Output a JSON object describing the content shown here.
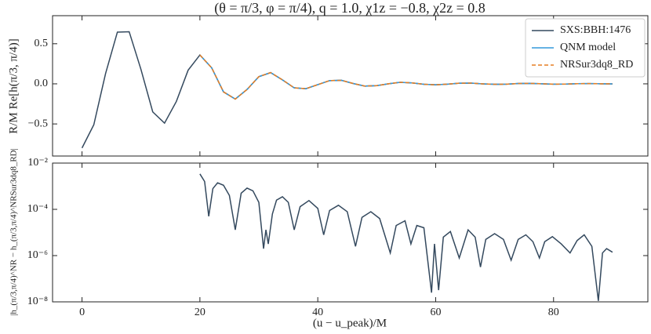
{
  "chart_data": [
    {
      "type": "line",
      "title": "(θ = π/3, φ = π/4), q = 1.0, χ1z = −0.8, χ2z = 0.8",
      "ylabel": "R/M Re[h(π/3, π/4)]",
      "xlim": [
        -5,
        96
      ],
      "ylim": [
        -0.9,
        0.85
      ],
      "xticks": [
        0,
        20,
        40,
        60,
        80
      ],
      "yticks": [
        {
          "value": -0.5,
          "label": "−0.5"
        },
        {
          "value": 0,
          "label": "0.0"
        },
        0.5
      ],
      "legend": "upper right",
      "series": [
        {
          "name": "SXS:BBH:1476",
          "color": "#34495e",
          "style": "solid",
          "x": [
            0,
            2,
            4,
            6,
            8,
            10,
            12,
            14,
            16,
            18,
            20,
            22,
            24,
            26,
            28,
            30,
            32,
            34,
            36,
            38,
            40,
            42,
            44,
            46,
            48,
            50,
            52,
            54,
            56,
            58,
            60,
            62,
            64,
            66,
            68,
            70,
            72,
            74,
            76,
            78,
            80,
            82,
            84,
            86,
            88,
            90
          ],
          "values": [
            -0.8,
            -0.51,
            0.13,
            0.645,
            0.65,
            0.18,
            -0.35,
            -0.49,
            -0.22,
            0.17,
            0.36,
            0.2,
            -0.1,
            -0.19,
            -0.07,
            0.09,
            0.14,
            0.05,
            -0.05,
            -0.06,
            -0.01,
            0.04,
            0.044,
            0.004,
            -0.028,
            -0.023,
            0.001,
            0.019,
            0.012,
            -0.005,
            -0.012,
            -0.004,
            0.008,
            0.009,
            0.0,
            -0.006,
            -0.004,
            0.004,
            0.006,
            0.001,
            -0.004,
            -0.003,
            0.002,
            0.003,
            0.001,
            0.0
          ]
        },
        {
          "name": "QNM model",
          "color": "#3498db",
          "style": "solid",
          "x": [
            20,
            22,
            24,
            26,
            28,
            30,
            32,
            34,
            36,
            38,
            40,
            42,
            44,
            46,
            48,
            50,
            52,
            54,
            56,
            58,
            60,
            62,
            64,
            66,
            68,
            70,
            72,
            74,
            76,
            78,
            80,
            82,
            84,
            86,
            88,
            90
          ],
          "values": [
            0.36,
            0.2,
            -0.1,
            -0.19,
            -0.07,
            0.09,
            0.14,
            0.05,
            -0.05,
            -0.06,
            -0.01,
            0.04,
            0.044,
            0.004,
            -0.028,
            -0.023,
            0.001,
            0.019,
            0.012,
            -0.005,
            -0.012,
            -0.004,
            0.008,
            0.009,
            0.0,
            -0.006,
            -0.004,
            0.004,
            0.006,
            0.001,
            -0.004,
            -0.003,
            0.002,
            0.003,
            0.001,
            0.0
          ]
        },
        {
          "name": "NRSur3dq8_RD",
          "color": "#e67e22",
          "style": "dashed",
          "x": [
            20,
            22,
            24,
            26,
            28,
            30,
            32,
            34,
            36,
            38,
            40,
            42,
            44,
            46,
            48,
            50,
            52,
            54,
            56,
            58,
            60,
            62,
            64,
            66,
            68,
            70,
            72,
            74,
            76,
            78,
            80,
            82,
            84,
            86,
            88,
            90
          ],
          "values": [
            0.36,
            0.2,
            -0.1,
            -0.19,
            -0.07,
            0.09,
            0.14,
            0.05,
            -0.05,
            -0.06,
            -0.01,
            0.04,
            0.044,
            0.004,
            -0.028,
            -0.023,
            0.001,
            0.019,
            0.012,
            -0.005,
            -0.012,
            -0.004,
            0.008,
            0.009,
            0.0,
            -0.006,
            -0.004,
            0.004,
            0.006,
            0.001,
            -0.004,
            -0.003,
            0.002,
            0.003,
            0.001,
            0.0
          ]
        }
      ]
    },
    {
      "type": "line",
      "log_y": true,
      "xlabel": "(u − u_peak)/M",
      "ylabel": "|h_(π/3,π/4)^NR − h_(π/3,π/4)^NRSur3dq8_RD|",
      "xlim": [
        -5,
        96
      ],
      "ylim": [
        1e-08,
        0.01
      ],
      "xticks": [
        0,
        20,
        40,
        60,
        80
      ],
      "yticks": [
        {
          "value": 1e-08,
          "label": "10⁻⁸"
        },
        {
          "value": 1e-06,
          "label": "10⁻⁶"
        },
        {
          "value": 0.0001,
          "label": "10⁻⁴"
        },
        {
          "value": 0.01,
          "label": "10⁻²"
        }
      ],
      "series": [
        {
          "color": "#34495e",
          "style": "solid",
          "x": [
            20,
            20.8,
            21.5,
            22.2,
            23,
            24,
            25,
            26,
            27,
            28,
            29,
            30,
            30.8,
            31.2,
            31.6,
            32.3,
            33,
            34,
            35,
            36,
            37,
            38.5,
            40,
            41,
            42,
            43.5,
            45,
            46.4,
            47.5,
            49,
            50.5,
            52.3,
            53.3,
            54.8,
            55.8,
            56.8,
            58,
            59.3,
            59.8,
            60.5,
            61.3,
            62.5,
            64,
            65.5,
            66.7,
            67.6,
            68.5,
            70,
            71.5,
            72.8,
            74,
            75.3,
            76.5,
            77.6,
            78.5,
            79.8,
            81.3,
            82.8,
            84,
            85.2,
            86.5,
            87.6,
            88.3,
            89,
            90
          ],
          "values": [
            0.0034,
            0.0016,
            5e-05,
            0.00079,
            0.0014,
            0.0011,
            0.0004,
            1.3e-05,
            0.0005,
            0.00083,
            0.00063,
            0.0002,
            2e-06,
            1.3e-05,
            3.2e-06,
            6.3e-05,
            0.00025,
            0.00035,
            0.0002,
            1.3e-05,
            0.00013,
            0.00024,
            0.00011,
            7.9e-06,
            8.9e-05,
            0.00015,
            7.9e-05,
            2.5e-06,
            4.5e-05,
            7.9e-05,
            4e-05,
            1.3e-06,
            2e-05,
            3.2e-05,
            3.2e-06,
            2e-05,
            1.6e-05,
            2.5e-08,
            3.2e-06,
            3.2e-08,
            6.3e-06,
            1.1e-05,
            7.9e-07,
            1.3e-05,
            6.3e-06,
            3.2e-07,
            5e-06,
            8.9e-06,
            5e-06,
            6.3e-07,
            5e-06,
            7.9e-06,
            4e-06,
            7.9e-07,
            4e-06,
            6.6e-06,
            3.2e-06,
            1.3e-06,
            4.5e-06,
            7.9e-06,
            2.5e-06,
            1.1e-08,
            1.3e-06,
            2e-06,
            1.4e-06
          ]
        }
      ]
    }
  ]
}
